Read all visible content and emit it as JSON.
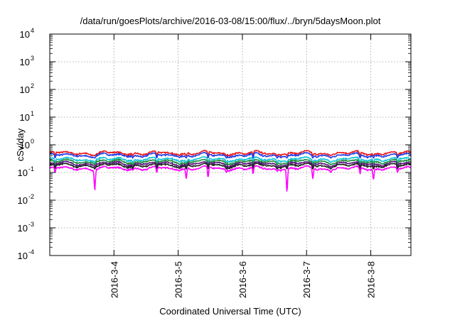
{
  "chart_data": {
    "type": "line",
    "title": "/data/run/goesPlots/archive/2016-03-08/15:00/flux/../bryn/5daysMoon.plot",
    "xlabel": "Coordinated Universal Time (UTC)",
    "ylabel": "cSv/day",
    "yscale": "log",
    "ylim": [
      0.0001,
      10000
    ],
    "yticks": [
      {
        "base": "10",
        "exp": "-4",
        "value": 0.0001
      },
      {
        "base": "10",
        "exp": "-3",
        "value": 0.001
      },
      {
        "base": "10",
        "exp": "-2",
        "value": 0.01
      },
      {
        "base": "10",
        "exp": "-1",
        "value": 0.1
      },
      {
        "base": "10",
        "exp": "0",
        "value": 1
      },
      {
        "base": "10",
        "exp": "1",
        "value": 10
      },
      {
        "base": "10",
        "exp": "2",
        "value": 100
      },
      {
        "base": "10",
        "exp": "3",
        "value": 1000
      },
      {
        "base": "10",
        "exp": "4",
        "value": 10000
      }
    ],
    "xlim": [
      "2016-03-03T00:00",
      "2016-03-08T15:00"
    ],
    "xticks": [
      {
        "label": "2016-3-4",
        "value": "2016-03-04T00:00"
      },
      {
        "label": "2016-3-5",
        "value": "2016-03-05T00:00"
      },
      {
        "label": "2016-3-6",
        "value": "2016-03-06T00:00"
      },
      {
        "label": "2016-3-7",
        "value": "2016-03-07T00:00"
      },
      {
        "label": "2016-3-8",
        "value": "2016-03-08T00:00"
      }
    ],
    "grid": true,
    "series": [
      {
        "color": "#e8171c",
        "base": 0.5,
        "dip": 0.55
      },
      {
        "color": "#1f3be8",
        "base": 0.42,
        "dip": 0.6
      },
      {
        "color": "#12c2d8",
        "base": 0.3,
        "dip": 0.7
      },
      {
        "color": "#1e8f3a",
        "base": 0.25,
        "dip": 0.7
      },
      {
        "color": "#5a1480",
        "base": 0.21,
        "dip": 0.75
      },
      {
        "color": "#222222",
        "base": 0.18,
        "dip": 0.75
      },
      {
        "color": "#ff00ff",
        "base": 0.14,
        "dip": 1.0
      }
    ],
    "dips": [
      {
        "x": "2016-03-03T02:00",
        "value": 0.1
      },
      {
        "x": "2016-03-03T16:50",
        "value": 0.023
      },
      {
        "x": "2016-03-04T07:00",
        "value": 0.12
      },
      {
        "x": "2016-03-04T16:00",
        "value": 0.1
      },
      {
        "x": "2016-03-05T03:00",
        "value": 0.06
      },
      {
        "x": "2016-03-05T11:10",
        "value": 0.065
      },
      {
        "x": "2016-03-05T18:00",
        "value": 0.1
      },
      {
        "x": "2016-03-06T04:00",
        "value": 0.09
      },
      {
        "x": "2016-03-06T13:00",
        "value": 0.11
      },
      {
        "x": "2016-03-06T16:40",
        "value": 0.019
      },
      {
        "x": "2016-03-07T02:20",
        "value": 0.06
      },
      {
        "x": "2016-03-07T09:00",
        "value": 0.1
      },
      {
        "x": "2016-03-07T20:00",
        "value": 0.09
      },
      {
        "x": "2016-03-08T01:00",
        "value": 0.055
      },
      {
        "x": "2016-03-08T10:00",
        "value": 0.1
      }
    ]
  }
}
